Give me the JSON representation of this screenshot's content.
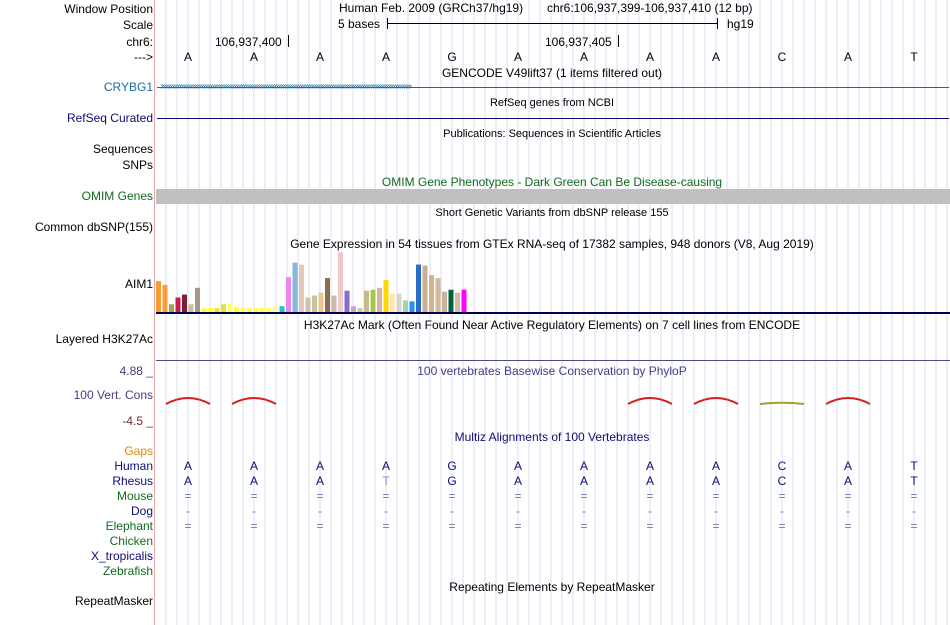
{
  "header": {
    "window_position_label": "Window Position",
    "assembly": "Human Feb. 2009 (GRCh37/hg19)",
    "position": "chr6:106,937,399-106,937,410 (12 bp)",
    "scale_label": "Scale",
    "scale_text": "5 bases",
    "scale_db": "hg19",
    "chrom_label": "chr6:",
    "tick1": "106,937,400",
    "tick2": "106,937,405",
    "strand_label": "--->"
  },
  "bases": [
    "A",
    "A",
    "A",
    "A",
    "G",
    "A",
    "A",
    "A",
    "A",
    "C",
    "A",
    "T"
  ],
  "tracks": {
    "gencode_title": "GENCODE V49lift37 (1 items filtered out)",
    "gencode_gene": "CRYBG1",
    "refseq_title": "RefSeq genes from NCBI",
    "refseq_label": "RefSeq Curated",
    "publications_title": "Publications: Sequences in Scientific Articles",
    "sequences_label": "Sequences",
    "snps_label": "SNPs",
    "omim_title": "OMIM Gene Phenotypes - Dark Green Can Be Disease-causing",
    "omim_label": "OMIM Genes",
    "dbsnp_title": "Short Genetic Variants from dbSNP release 155",
    "dbsnp_label": "Common dbSNP(155)",
    "gtex_title": "Gene Expression in 54 tissues from GTEx RNA-seq of 17382 samples, 948 donors (V8, Aug 2019)",
    "gtex_gene": "AIM1",
    "h3k27ac_title": "H3K27Ac Mark (Often Found Near Active Regulatory Elements) on 7 cell lines from ENCODE",
    "h3k27ac_label": "Layered H3K27Ac",
    "phylop_max": "4.88 _",
    "phylop_title": "100 vertebrates Basewise Conservation by PhyloP",
    "phylop_label": "100 Vert. Cons",
    "phylop_min": "-4.5 _",
    "multiz_title": "Multiz Alignments of 100 Vertebrates",
    "gaps_label": "Gaps",
    "repeat_title": "Repeating Elements by RepeatMasker",
    "repeat_label": "RepeatMasker"
  },
  "species": [
    {
      "name": "Human",
      "bases": [
        "A",
        "A",
        "A",
        "A",
        "G",
        "A",
        "A",
        "A",
        "A",
        "C",
        "A",
        "T"
      ]
    },
    {
      "name": "Rhesus",
      "bases": [
        "A",
        "A",
        "A",
        "T",
        "G",
        "A",
        "A",
        "A",
        "A",
        "C",
        "A",
        "T"
      ]
    },
    {
      "name": "Mouse",
      "bases": [
        "=",
        "=",
        "=",
        "=",
        "=",
        "=",
        "=",
        "=",
        "=",
        "=",
        "=",
        "="
      ]
    },
    {
      "name": "Dog",
      "bases": [
        "-",
        "-",
        "-",
        "-",
        "-",
        "-",
        "-",
        "-",
        "-",
        "-",
        "-",
        "-"
      ]
    },
    {
      "name": "Elephant",
      "bases": [
        "=",
        "=",
        "=",
        "=",
        "=",
        "=",
        "=",
        "=",
        "=",
        "=",
        "=",
        "="
      ]
    },
    {
      "name": "Chicken",
      "bases": [
        "",
        "",
        "",
        "",
        "",
        "",
        "",
        "",
        "",
        "",
        "",
        ""
      ]
    },
    {
      "name": "X_tropicalis",
      "bases": [
        "",
        "",
        "",
        "",
        "",
        "",
        "",
        "",
        "",
        "",
        "",
        ""
      ]
    },
    {
      "name": "Zebrafish",
      "bases": [
        "",
        "",
        "",
        "",
        "",
        "",
        "",
        "",
        "",
        "",
        "",
        ""
      ]
    }
  ],
  "gtex_colors": [
    "#f39c34",
    "#ff9a3c",
    "#9aa84b",
    "#c81f4e",
    "#7a1f3a",
    "#d8b896",
    "#a89888",
    "#ffff33",
    "#ffff33",
    "#e6e622",
    "#e6e622",
    "#ffff66",
    "#ffff44",
    "#ffff44",
    "#ffff44",
    "#ffff44",
    "#ffff44",
    "#ffff66",
    "#ffff88",
    "#18c8c8",
    "#ee82ee",
    "#87b7d9",
    "#e4c8b8",
    "#d8c0a8",
    "#c4c4a0",
    "#f0c490",
    "#8a6a4a",
    "#ccbbaa",
    "#f2c8c8",
    "#8a6bd0",
    "#d0a0d0",
    "#c8c8a0",
    "#c4b890",
    "#a8c848",
    "#d8b4a0",
    "#ffd700",
    "#ffe4b5",
    "#d4d4d4",
    "#a4d4a4",
    "#1e90ff",
    "#2a6cc8",
    "#c8b090",
    "#d2b48c",
    "#d4b89c",
    "#c8b49c",
    "#006040",
    "#d0c0a0",
    "#ff00ff"
  ],
  "gtex_values": [
    32,
    28,
    8,
    15,
    18,
    8,
    25,
    4,
    4,
    4,
    8,
    9,
    5,
    4,
    4,
    4,
    4,
    4,
    6,
    6,
    36,
    51,
    49,
    15,
    17,
    20,
    35,
    17,
    62,
    22,
    6,
    4,
    22,
    23,
    25,
    33,
    19,
    19,
    12,
    11,
    49,
    48,
    38,
    35,
    21,
    23,
    20,
    23
  ],
  "phylop_peaks": [
    {
      "col": 0,
      "color": "#d42020",
      "value": 1.0
    },
    {
      "col": 1,
      "color": "#d42020",
      "value": 1.0
    },
    {
      "col": 7,
      "color": "#d42020",
      "value": 1.0
    },
    {
      "col": 8,
      "color": "#d42020",
      "value": 1.0
    },
    {
      "col": 9,
      "color": "#a0a030",
      "value": 0.2
    },
    {
      "col": 10,
      "color": "#d42020",
      "value": 1.0
    }
  ]
}
